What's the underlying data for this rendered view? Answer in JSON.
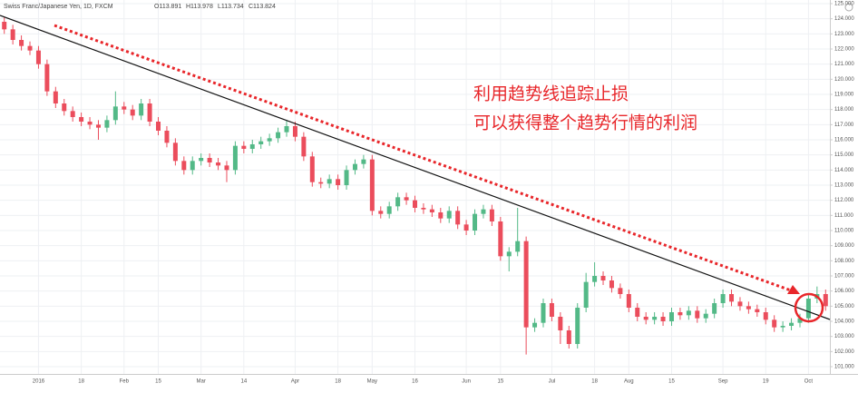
{
  "chart_data": {
    "type": "candlestick",
    "title": "Swiss Franc/Japanese Yen, 1D, FXCM",
    "ohlc_legend": [
      "O113.891",
      "H113.978",
      "L113.734",
      "C113.824"
    ],
    "annotations": [
      "利用趋势线追踪止损",
      "可以获得整个趋势行情的利润"
    ],
    "up_color": "#53b987",
    "down_color": "#eb4d5c",
    "grid": true,
    "ylim": [
      100.52,
      125.24
    ],
    "yticks": [
      {
        "value": 101,
        "label": "101.000"
      },
      {
        "value": 102,
        "label": "102.000"
      },
      {
        "value": 103,
        "label": "103.000"
      },
      {
        "value": 104,
        "label": "104.000"
      },
      {
        "value": 105,
        "label": "105.000"
      },
      {
        "value": 106,
        "label": "106.000"
      },
      {
        "value": 107,
        "label": "107.000"
      },
      {
        "value": 108,
        "label": "108.000"
      },
      {
        "value": 109,
        "label": "109.000"
      },
      {
        "value": 110,
        "label": "110.000"
      },
      {
        "value": 111,
        "label": "111.000"
      },
      {
        "value": 112,
        "label": "112.000"
      },
      {
        "value": 113,
        "label": "113.000"
      },
      {
        "value": 114,
        "label": "114.000"
      },
      {
        "value": 115,
        "label": "115.000"
      },
      {
        "value": 116,
        "label": "116.000"
      },
      {
        "value": 117,
        "label": "117.000"
      },
      {
        "value": 118,
        "label": "118.000"
      },
      {
        "value": 119,
        "label": "119.000"
      },
      {
        "value": 120,
        "label": "120.000"
      },
      {
        "value": 121,
        "label": "121.000"
      },
      {
        "value": 122,
        "label": "122.000"
      },
      {
        "value": 123,
        "label": "123.000"
      },
      {
        "value": 124,
        "label": "124.000"
      },
      {
        "value": 125,
        "label": "125.000"
      }
    ],
    "categories": [
      null,
      null,
      null,
      null,
      "2016",
      null,
      null,
      null,
      null,
      "18",
      null,
      null,
      null,
      null,
      "Feb",
      null,
      null,
      null,
      "15",
      null,
      null,
      null,
      null,
      "Mar",
      null,
      null,
      null,
      null,
      "14",
      null,
      null,
      null,
      null,
      null,
      "Apr",
      null,
      null,
      null,
      null,
      "18",
      null,
      null,
      null,
      "May",
      null,
      null,
      null,
      null,
      "16",
      null,
      null,
      null,
      null,
      null,
      "Jun",
      null,
      null,
      null,
      "15",
      null,
      null,
      null,
      null,
      null,
      "Jul",
      null,
      null,
      null,
      null,
      "18",
      null,
      null,
      null,
      "Aug",
      null,
      null,
      null,
      null,
      "15",
      null,
      null,
      null,
      null,
      null,
      "Sep",
      null,
      null,
      null,
      null,
      "19",
      null,
      null,
      null,
      null,
      "Oct",
      null,
      null
    ],
    "open": [
      123.8,
      123.3,
      122.6,
      122.2,
      121.9,
      121.0,
      119.2,
      118.4,
      117.9,
      117.5,
      117.2,
      117.0,
      116.8,
      117.3,
      118.2,
      118.0,
      117.6,
      118.4,
      117.2,
      116.6,
      115.8,
      114.6,
      114.0,
      114.6,
      114.8,
      114.5,
      114.3,
      114.0,
      115.6,
      115.4,
      115.7,
      115.9,
      116.1,
      116.5,
      116.9,
      116.2,
      114.9,
      113.2,
      113.1,
      113.4,
      113.0,
      114.0,
      114.4,
      114.7,
      111.3,
      111.1,
      111.6,
      112.2,
      112.0,
      111.5,
      111.4,
      111.2,
      110.8,
      111.3,
      110.4,
      110.0,
      111.1,
      111.4,
      110.6,
      108.3,
      108.6,
      109.3,
      103.6,
      103.9,
      105.2,
      104.3,
      103.4,
      102.5,
      104.9,
      106.6,
      107.0,
      106.7,
      106.2,
      105.8,
      104.9,
      104.3,
      104.1,
      104.3,
      104.0,
      104.6,
      104.4,
      104.7,
      104.2,
      104.5,
      105.2,
      105.8,
      105.3,
      105.0,
      104.8,
      104.6,
      104.1,
      103.6,
      103.7,
      103.9,
      104.2,
      105.5,
      105.8
    ],
    "high": [
      124.1,
      123.6,
      122.9,
      122.5,
      122.2,
      121.3,
      119.5,
      118.7,
      118.2,
      117.8,
      117.5,
      117.3,
      117.6,
      119.2,
      118.5,
      118.3,
      118.7,
      118.7,
      117.5,
      116.9,
      116.1,
      114.9,
      114.9,
      115.1,
      115.1,
      114.8,
      114.6,
      115.9,
      115.9,
      116.0,
      116.2,
      116.4,
      116.8,
      117.3,
      117.2,
      116.5,
      115.2,
      113.5,
      113.7,
      113.7,
      114.3,
      114.7,
      115.0,
      115.0,
      111.6,
      111.9,
      112.5,
      112.5,
      112.3,
      111.8,
      111.7,
      111.5,
      111.6,
      111.6,
      110.7,
      111.4,
      111.7,
      111.7,
      110.9,
      108.9,
      111.5,
      109.6,
      104.2,
      105.5,
      105.5,
      104.6,
      103.7,
      105.2,
      107.2,
      107.9,
      107.3,
      107.0,
      106.5,
      106.1,
      105.2,
      104.6,
      104.6,
      104.6,
      104.9,
      104.9,
      105.0,
      105.0,
      104.8,
      105.5,
      106.1,
      106.1,
      105.6,
      105.3,
      105.1,
      104.9,
      104.4,
      104.0,
      104.2,
      104.5,
      105.8,
      106.3,
      106.1
    ],
    "low": [
      123.0,
      122.3,
      121.9,
      121.6,
      120.7,
      118.9,
      118.1,
      117.6,
      117.2,
      116.9,
      116.7,
      116.0,
      116.5,
      117.0,
      117.7,
      117.3,
      117.3,
      116.9,
      116.3,
      115.5,
      114.3,
      113.7,
      113.7,
      114.3,
      114.2,
      114.0,
      113.2,
      113.7,
      115.1,
      115.1,
      115.4,
      115.6,
      115.8,
      116.2,
      115.9,
      114.6,
      112.9,
      112.8,
      112.8,
      112.7,
      112.7,
      113.7,
      114.1,
      111.0,
      110.8,
      110.8,
      111.3,
      111.7,
      111.2,
      111.1,
      110.9,
      110.5,
      110.5,
      110.1,
      109.7,
      109.7,
      110.8,
      110.3,
      108.0,
      107.3,
      108.3,
      101.8,
      103.3,
      103.6,
      104.0,
      102.5,
      102.2,
      102.2,
      104.6,
      106.3,
      106.4,
      105.9,
      105.5,
      104.6,
      104.0,
      103.8,
      103.8,
      103.7,
      103.7,
      104.1,
      104.1,
      103.9,
      103.9,
      104.2,
      104.9,
      105.0,
      104.7,
      104.5,
      104.3,
      103.8,
      103.3,
      103.3,
      103.4,
      103.6,
      103.9,
      105.2,
      104.7
    ],
    "close": [
      123.3,
      122.6,
      122.2,
      121.9,
      121.0,
      119.2,
      118.4,
      117.9,
      117.5,
      117.2,
      117.0,
      116.8,
      117.3,
      118.2,
      118.0,
      117.6,
      118.4,
      117.2,
      116.6,
      115.8,
      114.6,
      114.0,
      114.6,
      114.8,
      114.5,
      114.3,
      114.0,
      115.6,
      115.4,
      115.7,
      115.9,
      116.1,
      116.5,
      116.9,
      116.2,
      114.9,
      113.2,
      113.1,
      113.4,
      113.0,
      114.0,
      114.4,
      114.7,
      111.3,
      111.1,
      111.6,
      112.2,
      112.0,
      111.5,
      111.4,
      111.2,
      110.8,
      111.3,
      110.4,
      110.0,
      111.1,
      111.4,
      110.6,
      108.3,
      108.6,
      109.3,
      103.6,
      103.9,
      105.2,
      104.3,
      103.4,
      102.5,
      104.9,
      106.6,
      107.0,
      106.7,
      106.2,
      105.8,
      104.9,
      104.3,
      104.1,
      104.3,
      104.0,
      104.6,
      104.4,
      104.7,
      104.2,
      104.5,
      105.2,
      105.8,
      105.3,
      105.0,
      104.8,
      104.6,
      104.1,
      103.6,
      103.7,
      103.9,
      104.2,
      105.5,
      105.8,
      105.0
    ]
  }
}
